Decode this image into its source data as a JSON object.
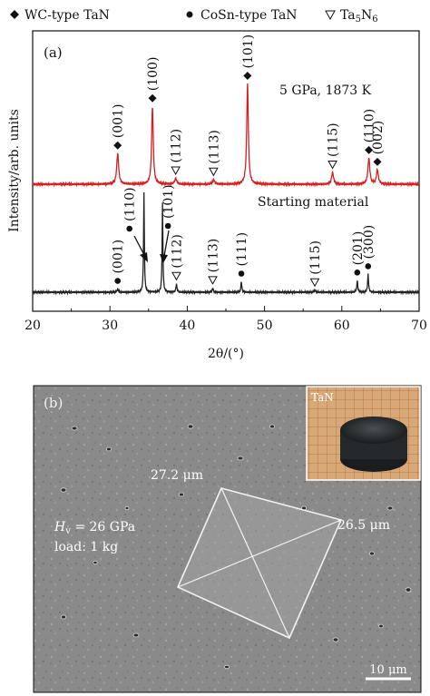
{
  "legend": {
    "items": [
      {
        "marker": "diamond",
        "label": "WC-type TaN"
      },
      {
        "marker": "dot",
        "label": "CoSn-type TaN"
      },
      {
        "marker": "triangle",
        "label": "Ta5N6"
      }
    ]
  },
  "chart_data": {
    "type": "line",
    "panel_label": "(a)",
    "xlabel": "2θ/(°)",
    "ylabel": "Intensity/arb. units",
    "xlim": [
      20,
      70
    ],
    "x_ticks": [
      "20",
      "30",
      "40",
      "50",
      "60",
      "70"
    ],
    "grid": false,
    "series": [
      {
        "name": "5 GPa, 1873 K",
        "color": "#d42020",
        "peaks": [
          {
            "x": 31.0,
            "height": 0.26,
            "width": 0.3
          },
          {
            "x": 35.5,
            "height": 0.66,
            "width": 0.25
          },
          {
            "x": 38.5,
            "height": 0.05,
            "width": 0.3
          },
          {
            "x": 43.4,
            "height": 0.04,
            "width": 0.3
          },
          {
            "x": 47.8,
            "height": 0.85,
            "width": 0.25
          },
          {
            "x": 58.8,
            "height": 0.1,
            "width": 0.3
          },
          {
            "x": 63.5,
            "height": 0.22,
            "width": 0.3
          },
          {
            "x": 64.6,
            "height": 0.12,
            "width": 0.3
          }
        ]
      },
      {
        "name": "Starting material",
        "color": "#222222",
        "peaks": [
          {
            "x": 31.0,
            "height": 0.03,
            "width": 0.2
          },
          {
            "x": 34.4,
            "height": 0.95,
            "width": 0.12
          },
          {
            "x": 36.8,
            "height": 0.85,
            "width": 0.12
          },
          {
            "x": 38.6,
            "height": 0.08,
            "width": 0.15
          },
          {
            "x": 43.3,
            "height": 0.04,
            "width": 0.15
          },
          {
            "x": 47.0,
            "height": 0.1,
            "width": 0.15
          },
          {
            "x": 56.5,
            "height": 0.02,
            "width": 0.2
          },
          {
            "x": 62.0,
            "height": 0.11,
            "width": 0.15
          },
          {
            "x": 63.4,
            "height": 0.17,
            "width": 0.15
          }
        ]
      }
    ],
    "annotations_top": [
      {
        "x": 31.0,
        "label": "(001)",
        "marker": "diamond"
      },
      {
        "x": 35.5,
        "label": "(100)",
        "marker": "diamond"
      },
      {
        "x": 38.5,
        "label": "(112)",
        "marker": "triangle"
      },
      {
        "x": 43.4,
        "label": "(113)",
        "marker": "triangle"
      },
      {
        "x": 47.8,
        "label": "(101)",
        "marker": "diamond"
      },
      {
        "x": 58.8,
        "label": "(115)",
        "marker": "triangle"
      },
      {
        "x": 63.5,
        "label": "(110)",
        "marker": "diamond"
      },
      {
        "x": 64.6,
        "label": "(002)",
        "marker": "diamond"
      }
    ],
    "annotations_bottom": [
      {
        "x": 31.0,
        "label": "(001)",
        "marker": "dot"
      },
      {
        "x": 34.4,
        "label": "(110)",
        "marker": "dot"
      },
      {
        "x": 36.8,
        "label": "(101)",
        "marker": "dot"
      },
      {
        "x": 38.6,
        "label": "(112)",
        "marker": "triangle"
      },
      {
        "x": 43.3,
        "label": "(113)",
        "marker": "triangle"
      },
      {
        "x": 47.0,
        "label": "(111)",
        "marker": "dot"
      },
      {
        "x": 56.5,
        "label": "(115)",
        "marker": "triangle"
      },
      {
        "x": 62.0,
        "label": "(201)",
        "marker": "dot"
      },
      {
        "x": 63.4,
        "label": "(300)",
        "marker": "dot"
      }
    ]
  },
  "micrograph": {
    "panel_label": "(b)",
    "inset_label": "TaN",
    "hardness_symbol": "H",
    "hardness_subscript": "v",
    "hardness_value": " = 26 GPa",
    "load_text": "load: 1 kg",
    "diag1_text": "27.2 μm",
    "diag2_text": "26.5 μm",
    "scale_text": "10 μm"
  }
}
